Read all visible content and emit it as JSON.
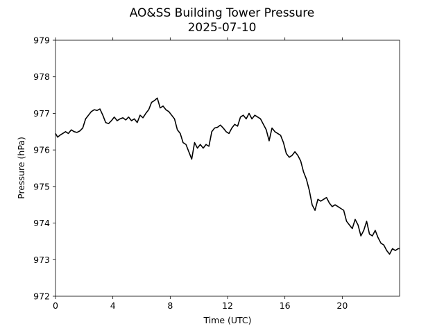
{
  "chart_data": {
    "type": "line",
    "title": "AO&SS Building Tower Pressure",
    "subtitle": "2025-07-10",
    "xlabel": "Time (UTC)",
    "ylabel": "Pressure (hPa)",
    "xlim": [
      0,
      24
    ],
    "ylim": [
      972,
      979
    ],
    "xticks": [
      0,
      4,
      8,
      12,
      16,
      20
    ],
    "yticks": [
      972,
      973,
      974,
      975,
      976,
      977,
      978,
      979
    ],
    "grid": false,
    "legend": "none",
    "line_color": "#000000",
    "series": [
      {
        "x": [
          0.0,
          0.15,
          0.3,
          0.5,
          0.7,
          0.9,
          1.1,
          1.3,
          1.5,
          1.7,
          1.9,
          2.1,
          2.3,
          2.5,
          2.7,
          2.9,
          3.1,
          3.3,
          3.5,
          3.7,
          3.9,
          4.1,
          4.3,
          4.5,
          4.7,
          4.9,
          5.1,
          5.3,
          5.5,
          5.7,
          5.9,
          6.1,
          6.3,
          6.5,
          6.7,
          6.9,
          7.1,
          7.3,
          7.5,
          7.7,
          7.9,
          8.1,
          8.3,
          8.5,
          8.7,
          8.9,
          9.1,
          9.3,
          9.5,
          9.7,
          9.9,
          10.1,
          10.3,
          10.5,
          10.7,
          10.9,
          11.1,
          11.3,
          11.5,
          11.7,
          11.9,
          12.1,
          12.3,
          12.5,
          12.7,
          12.9,
          13.1,
          13.3,
          13.5,
          13.7,
          13.9,
          14.1,
          14.3,
          14.5,
          14.7,
          14.9,
          15.1,
          15.3,
          15.5,
          15.7,
          15.9,
          16.1,
          16.3,
          16.5,
          16.7,
          16.9,
          17.1,
          17.3,
          17.5,
          17.7,
          17.9,
          18.1,
          18.3,
          18.5,
          18.7,
          18.9,
          19.1,
          19.3,
          19.5,
          19.7,
          19.9,
          20.1,
          20.3,
          20.5,
          20.7,
          20.9,
          21.1,
          21.3,
          21.5,
          21.7,
          21.9,
          22.1,
          22.3,
          22.5,
          22.7,
          22.9,
          23.1,
          23.3,
          23.5,
          23.7,
          23.9,
          24.0
        ],
        "y": [
          976.45,
          976.35,
          976.4,
          976.45,
          976.5,
          976.45,
          976.55,
          976.5,
          976.48,
          976.52,
          976.6,
          976.85,
          976.95,
          977.05,
          977.1,
          977.08,
          977.12,
          976.95,
          976.75,
          976.72,
          976.8,
          976.9,
          976.8,
          976.85,
          976.88,
          976.82,
          976.9,
          976.8,
          976.85,
          976.75,
          976.95,
          976.88,
          977.0,
          977.1,
          977.3,
          977.35,
          977.42,
          977.15,
          977.2,
          977.1,
          977.05,
          976.95,
          976.85,
          976.55,
          976.45,
          976.2,
          976.15,
          975.95,
          975.75,
          976.2,
          976.05,
          976.15,
          976.05,
          976.15,
          976.1,
          976.5,
          976.6,
          976.62,
          976.68,
          976.6,
          976.5,
          976.45,
          976.6,
          976.7,
          976.65,
          976.9,
          976.95,
          976.85,
          977.0,
          976.85,
          976.95,
          976.9,
          976.85,
          976.7,
          976.55,
          976.25,
          976.6,
          976.5,
          976.45,
          976.4,
          976.2,
          975.9,
          975.8,
          975.85,
          975.95,
          975.85,
          975.7,
          975.4,
          975.2,
          974.9,
          974.5,
          974.35,
          974.65,
          974.6,
          974.65,
          974.7,
          974.55,
          974.45,
          974.5,
          974.45,
          974.4,
          974.35,
          974.05,
          973.95,
          973.85,
          974.1,
          973.95,
          973.65,
          973.8,
          974.05,
          973.7,
          973.65,
          973.8,
          973.6,
          973.45,
          973.4,
          973.25,
          973.15,
          973.3,
          973.25,
          973.3,
          973.3
        ]
      }
    ]
  }
}
